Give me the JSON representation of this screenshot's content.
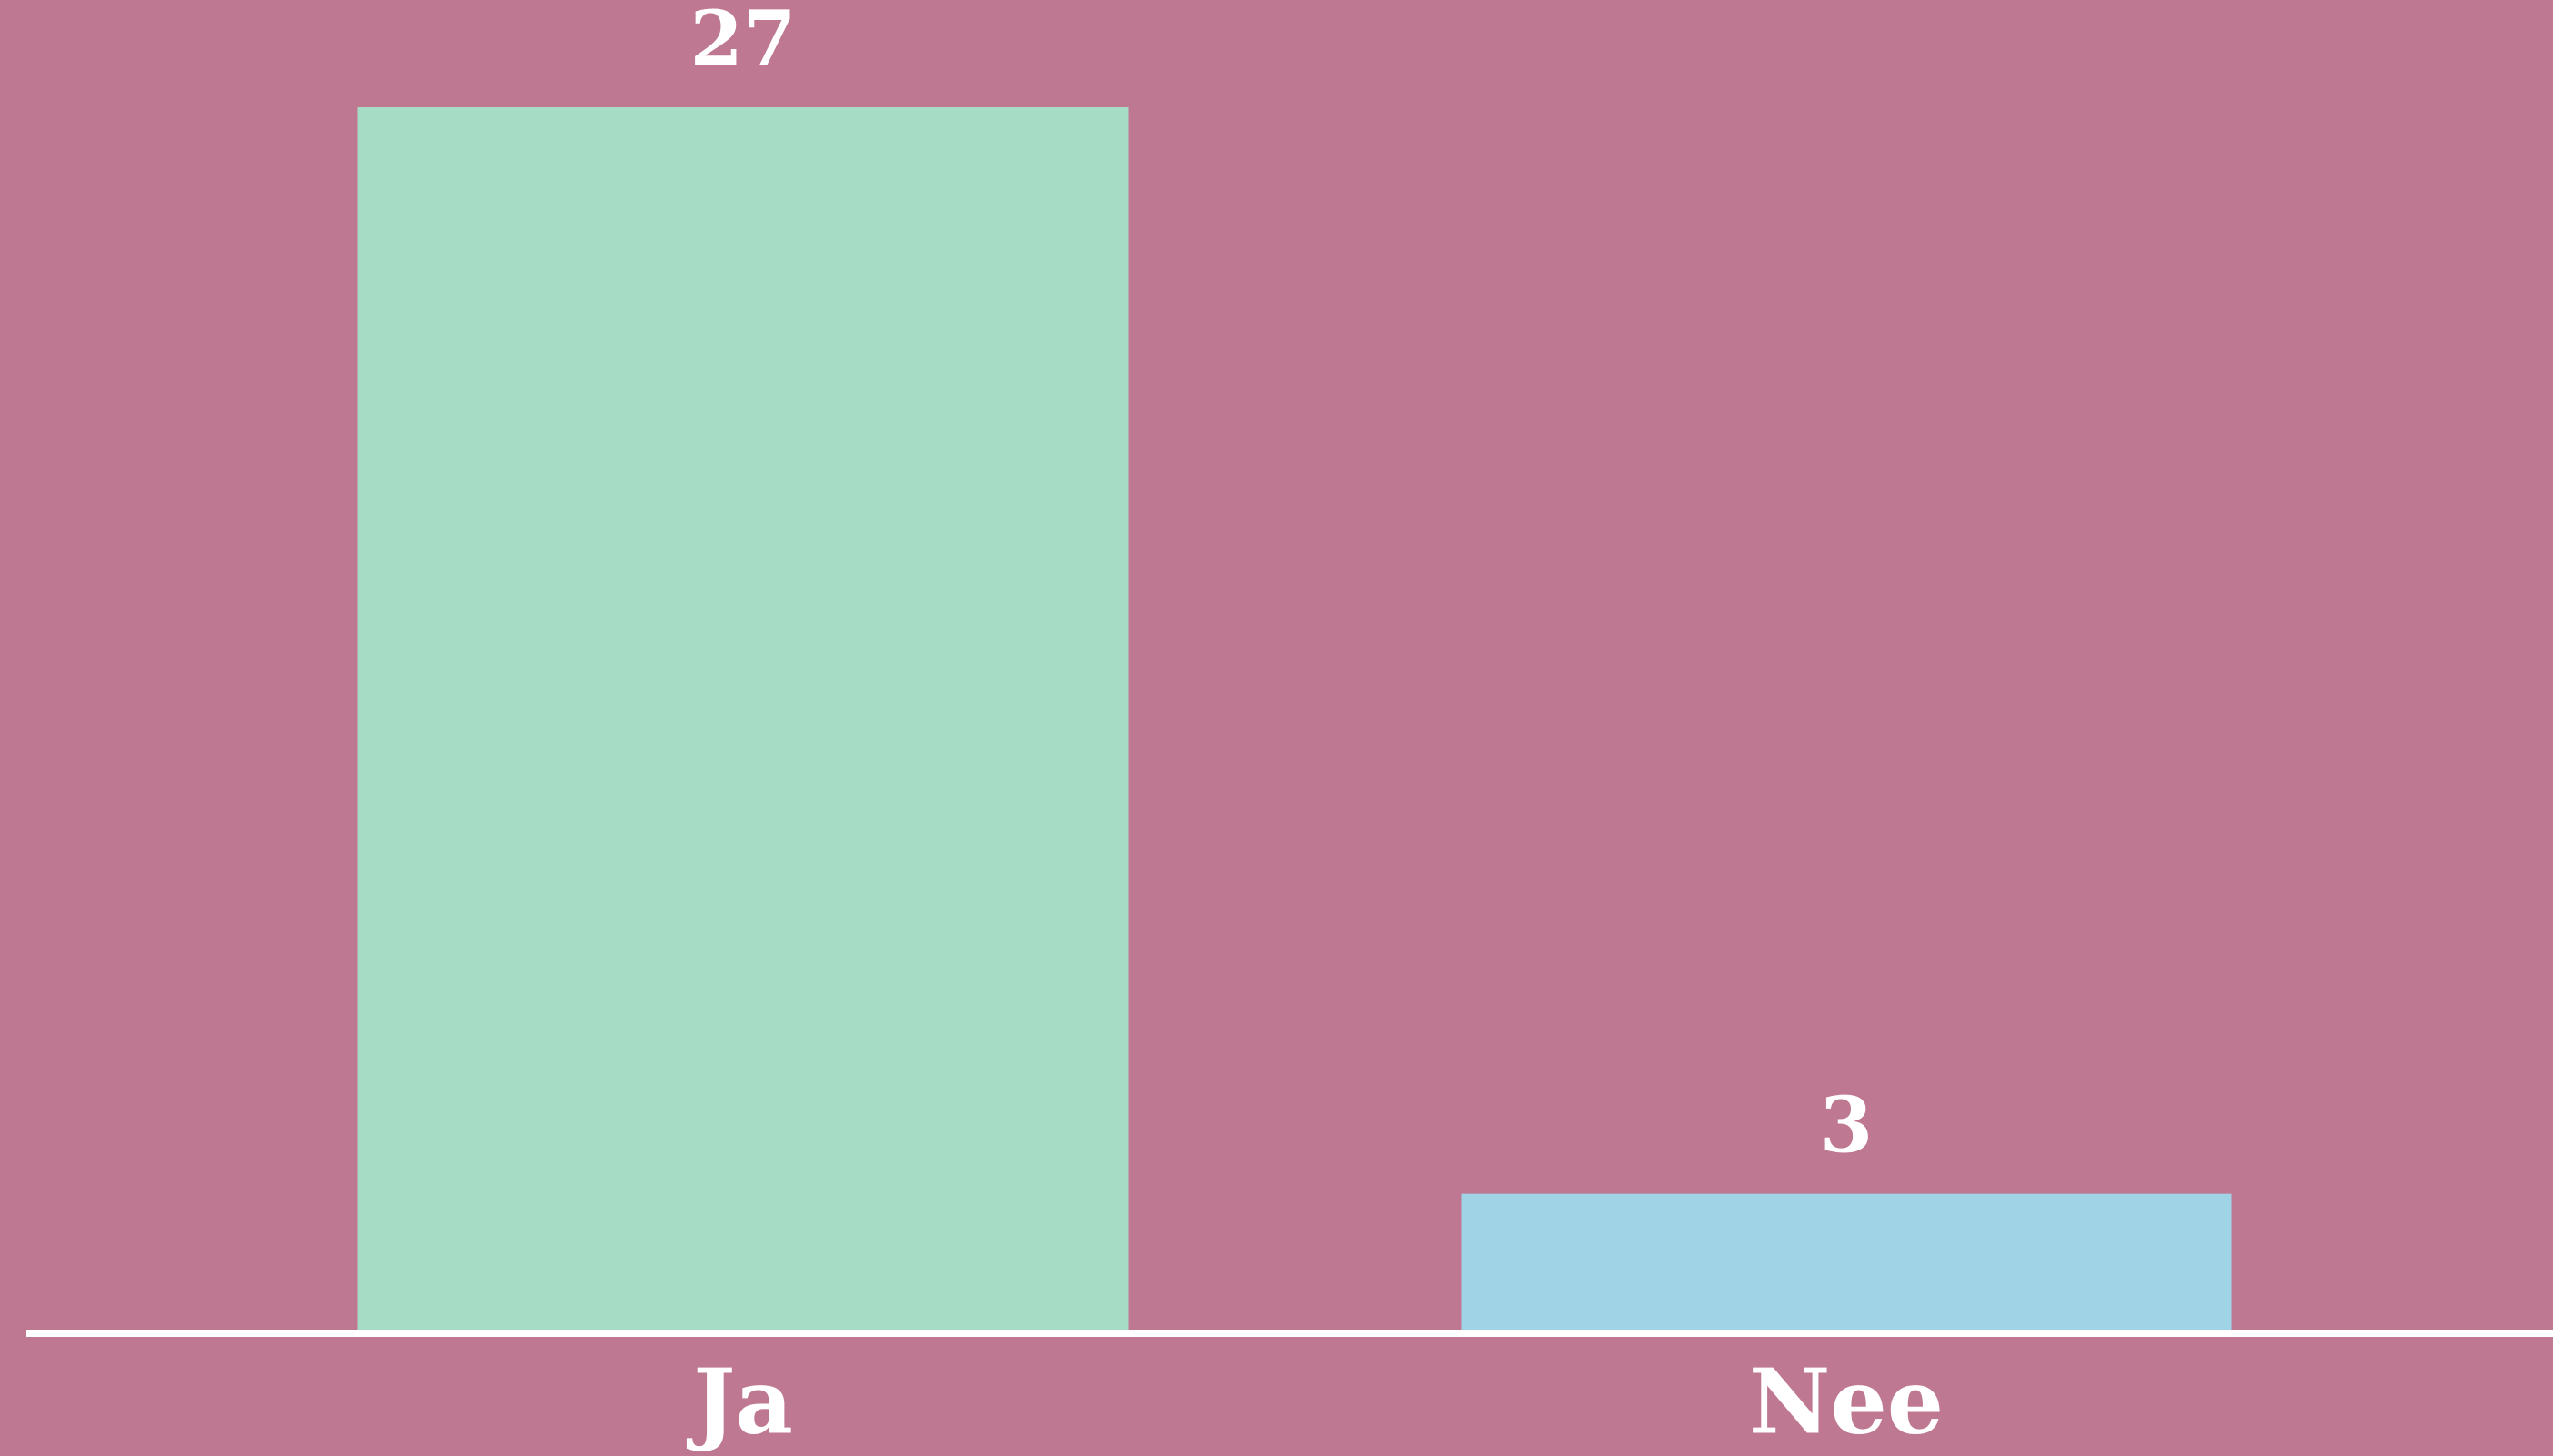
{
  "chart_data": {
    "type": "bar",
    "categories": [
      "Ja",
      "Nee"
    ],
    "values": [
      27,
      3
    ],
    "colors": [
      "#a6dcc6",
      "#a0d3e5"
    ],
    "background": "#bf7892"
  }
}
